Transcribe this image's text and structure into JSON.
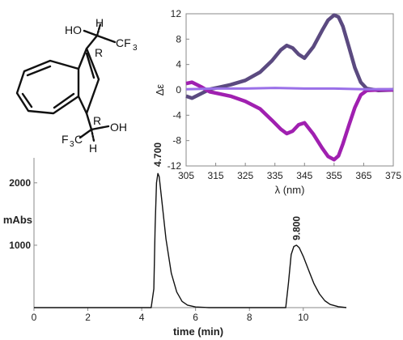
{
  "molecule": {
    "labels": {
      "ho": "HO",
      "h_top": "H",
      "r_top": "R",
      "cf3_top": "CF",
      "r_bottom": "R",
      "oh": "OH",
      "f3c": "F",
      "h_bottom": "H"
    },
    "subscripts": {
      "cf3_top": "3",
      "f3c": "3",
      "f3c_c": "C"
    }
  },
  "chart_data": [
    {
      "type": "line",
      "title": "",
      "xlabel": "λ (nm)",
      "ylabel": "Δε",
      "xlim": [
        305,
        375
      ],
      "ylim": [
        -12,
        12
      ],
      "xticks": [
        305,
        315,
        325,
        335,
        345,
        355,
        365,
        375
      ],
      "yticks": [
        12,
        8,
        4,
        0,
        -4,
        -8,
        -12
      ],
      "grid": false,
      "colors": [
        "#5b4a80",
        "#a020b0",
        "#9a70e8"
      ],
      "series": [
        {
          "x": [
            305,
            307,
            310,
            313,
            316,
            320,
            325,
            330,
            334,
            337,
            339,
            341,
            343,
            345,
            348,
            351,
            353,
            355,
            356.5,
            358,
            360,
            362,
            364,
            366,
            370,
            375
          ],
          "y": [
            -1.0,
            -1.3,
            -0.6,
            0.1,
            0.4,
            0.8,
            1.5,
            2.8,
            4.6,
            6.3,
            7.0,
            6.6,
            5.6,
            5.0,
            6.8,
            9.4,
            11.0,
            11.8,
            11.5,
            10.0,
            6.8,
            3.5,
            1.2,
            0.2,
            -0.1,
            0.0
          ]
        },
        {
          "x": [
            305,
            307,
            310,
            313,
            316,
            320,
            325,
            330,
            334,
            337,
            339,
            341,
            343,
            345,
            348,
            351,
            353,
            355,
            356.5,
            358,
            360,
            362,
            364,
            366,
            370,
            375
          ],
          "y": [
            1.0,
            1.2,
            0.5,
            -0.3,
            -0.6,
            -1.0,
            -1.8,
            -3.0,
            -4.8,
            -6.2,
            -6.9,
            -6.5,
            -5.5,
            -5.2,
            -7.0,
            -9.2,
            -10.5,
            -11.0,
            -10.4,
            -8.5,
            -5.6,
            -2.8,
            -0.8,
            -0.1,
            0.0,
            0.0
          ]
        },
        {
          "x": [
            305,
            315,
            325,
            335,
            345,
            355,
            365,
            375
          ],
          "y": [
            0.1,
            0.2,
            0.2,
            0.3,
            0.2,
            0.2,
            0.1,
            0.1
          ]
        }
      ]
    },
    {
      "type": "line",
      "title": "",
      "xlabel": "time (min)",
      "ylabel": "mAbs",
      "xlim": [
        0,
        11.6
      ],
      "ylim": [
        0,
        2400
      ],
      "xticks": [
        0,
        2,
        4,
        6,
        8,
        10
      ],
      "yticks": [
        1000,
        2000
      ],
      "grid": false,
      "annotations": [
        {
          "text": "4.700",
          "x": 4.6,
          "y": 2180
        },
        {
          "text": "9.800",
          "x": 9.75,
          "y": 1000
        }
      ],
      "series": [
        {
          "x": [
            0,
            4.35,
            4.45,
            4.5,
            4.55,
            4.6,
            4.65,
            4.75,
            4.9,
            5.1,
            5.3,
            5.5,
            5.7,
            6.0,
            6.5,
            9.35,
            9.45,
            9.55,
            9.65,
            9.75,
            9.85,
            10.0,
            10.2,
            10.4,
            10.6,
            10.8,
            11.0,
            11.3,
            11.6
          ],
          "y": [
            0,
            0,
            300,
            1300,
            2000,
            2150,
            2100,
            1700,
            1100,
            550,
            250,
            100,
            40,
            10,
            0,
            0,
            400,
            850,
            980,
            1000,
            960,
            820,
            600,
            380,
            220,
            110,
            50,
            15,
            0
          ]
        }
      ]
    }
  ]
}
